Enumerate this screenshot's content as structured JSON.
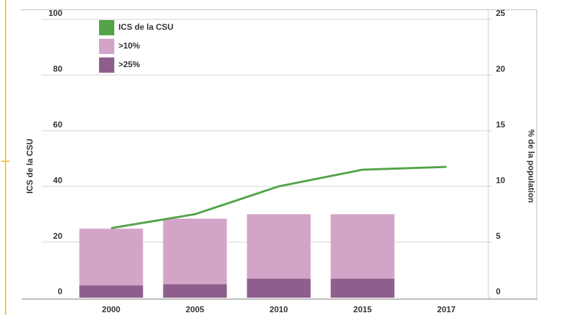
{
  "chart_data": {
    "type": "bar-line",
    "categories": [
      "2000",
      "2005",
      "2010",
      "2015",
      "2017"
    ],
    "series": [
      {
        "name": "ICS de la CSU",
        "type": "line",
        "color": "#52a447",
        "values": [
          25,
          30,
          40,
          46,
          47
        ]
      },
      {
        "name": ">10%",
        "type": "bar",
        "axis": "y2",
        "color": "#d4a4c8",
        "values": [
          6.2,
          7.1,
          7.5,
          7.5,
          null
        ]
      },
      {
        "name": ">25%",
        "type": "bar",
        "axis": "y2",
        "color": "#8e5f8c",
        "values": [
          1.1,
          1.2,
          1.7,
          1.7,
          null
        ]
      }
    ],
    "ylabel": "ICS de la CSU",
    "y2label": "% de la population",
    "ylim": [
      0,
      100
    ],
    "yticks": [
      0,
      20,
      40,
      60,
      80,
      100
    ],
    "y2lim": [
      0,
      25
    ],
    "y2ticks": [
      0,
      5,
      10,
      15,
      20,
      25
    ],
    "grid": true,
    "legend": "upper left"
  }
}
